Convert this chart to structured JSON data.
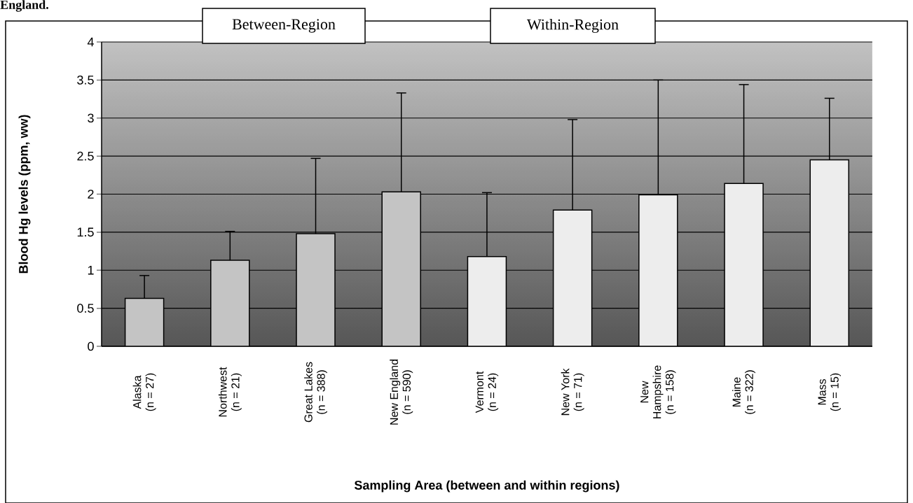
{
  "chart_data": {
    "type": "bar",
    "title": "England.",
    "xlabel": "Sampling Area (between and within regions)",
    "ylabel": "Blood Hg levels (ppm, ww)",
    "annotations": [
      "Between-Region",
      "Within-Region"
    ],
    "categories": [
      "Alaska (n = 27)",
      "Northwest (n = 21)",
      "Great Lakes (n = 388)",
      "New England (n = 590)",
      "Vermont (n = 24)",
      "New York (n = 71)",
      "New Hampshire (n = 158)",
      "Maine (n = 322)",
      "Mass (n = 15)"
    ],
    "values": [
      0.63,
      1.13,
      1.48,
      2.03,
      1.18,
      1.79,
      1.99,
      2.14,
      2.45
    ],
    "colors": [
      "#c4c4c4",
      "#c4c4c4",
      "#c4c4c4",
      "#c4c4c4",
      "#ededed",
      "#ededed",
      "#ededed",
      "#ededed",
      "#ededed"
    ],
    "errors": [
      [
        0.63,
        0.93
      ],
      [
        1.13,
        1.51
      ],
      [
        1.48,
        2.47
      ],
      [
        2.03,
        3.33
      ],
      [
        1.18,
        2.02
      ],
      [
        1.79,
        2.98
      ],
      [
        1.99,
        3.5
      ],
      [
        2.14,
        3.44
      ],
      [
        2.45,
        3.26
      ]
    ],
    "ylim": [
      0,
      4
    ],
    "yticks": [
      0,
      0.5,
      1,
      1.5,
      2,
      2.5,
      3,
      3.5,
      4
    ],
    "grid": "y"
  }
}
